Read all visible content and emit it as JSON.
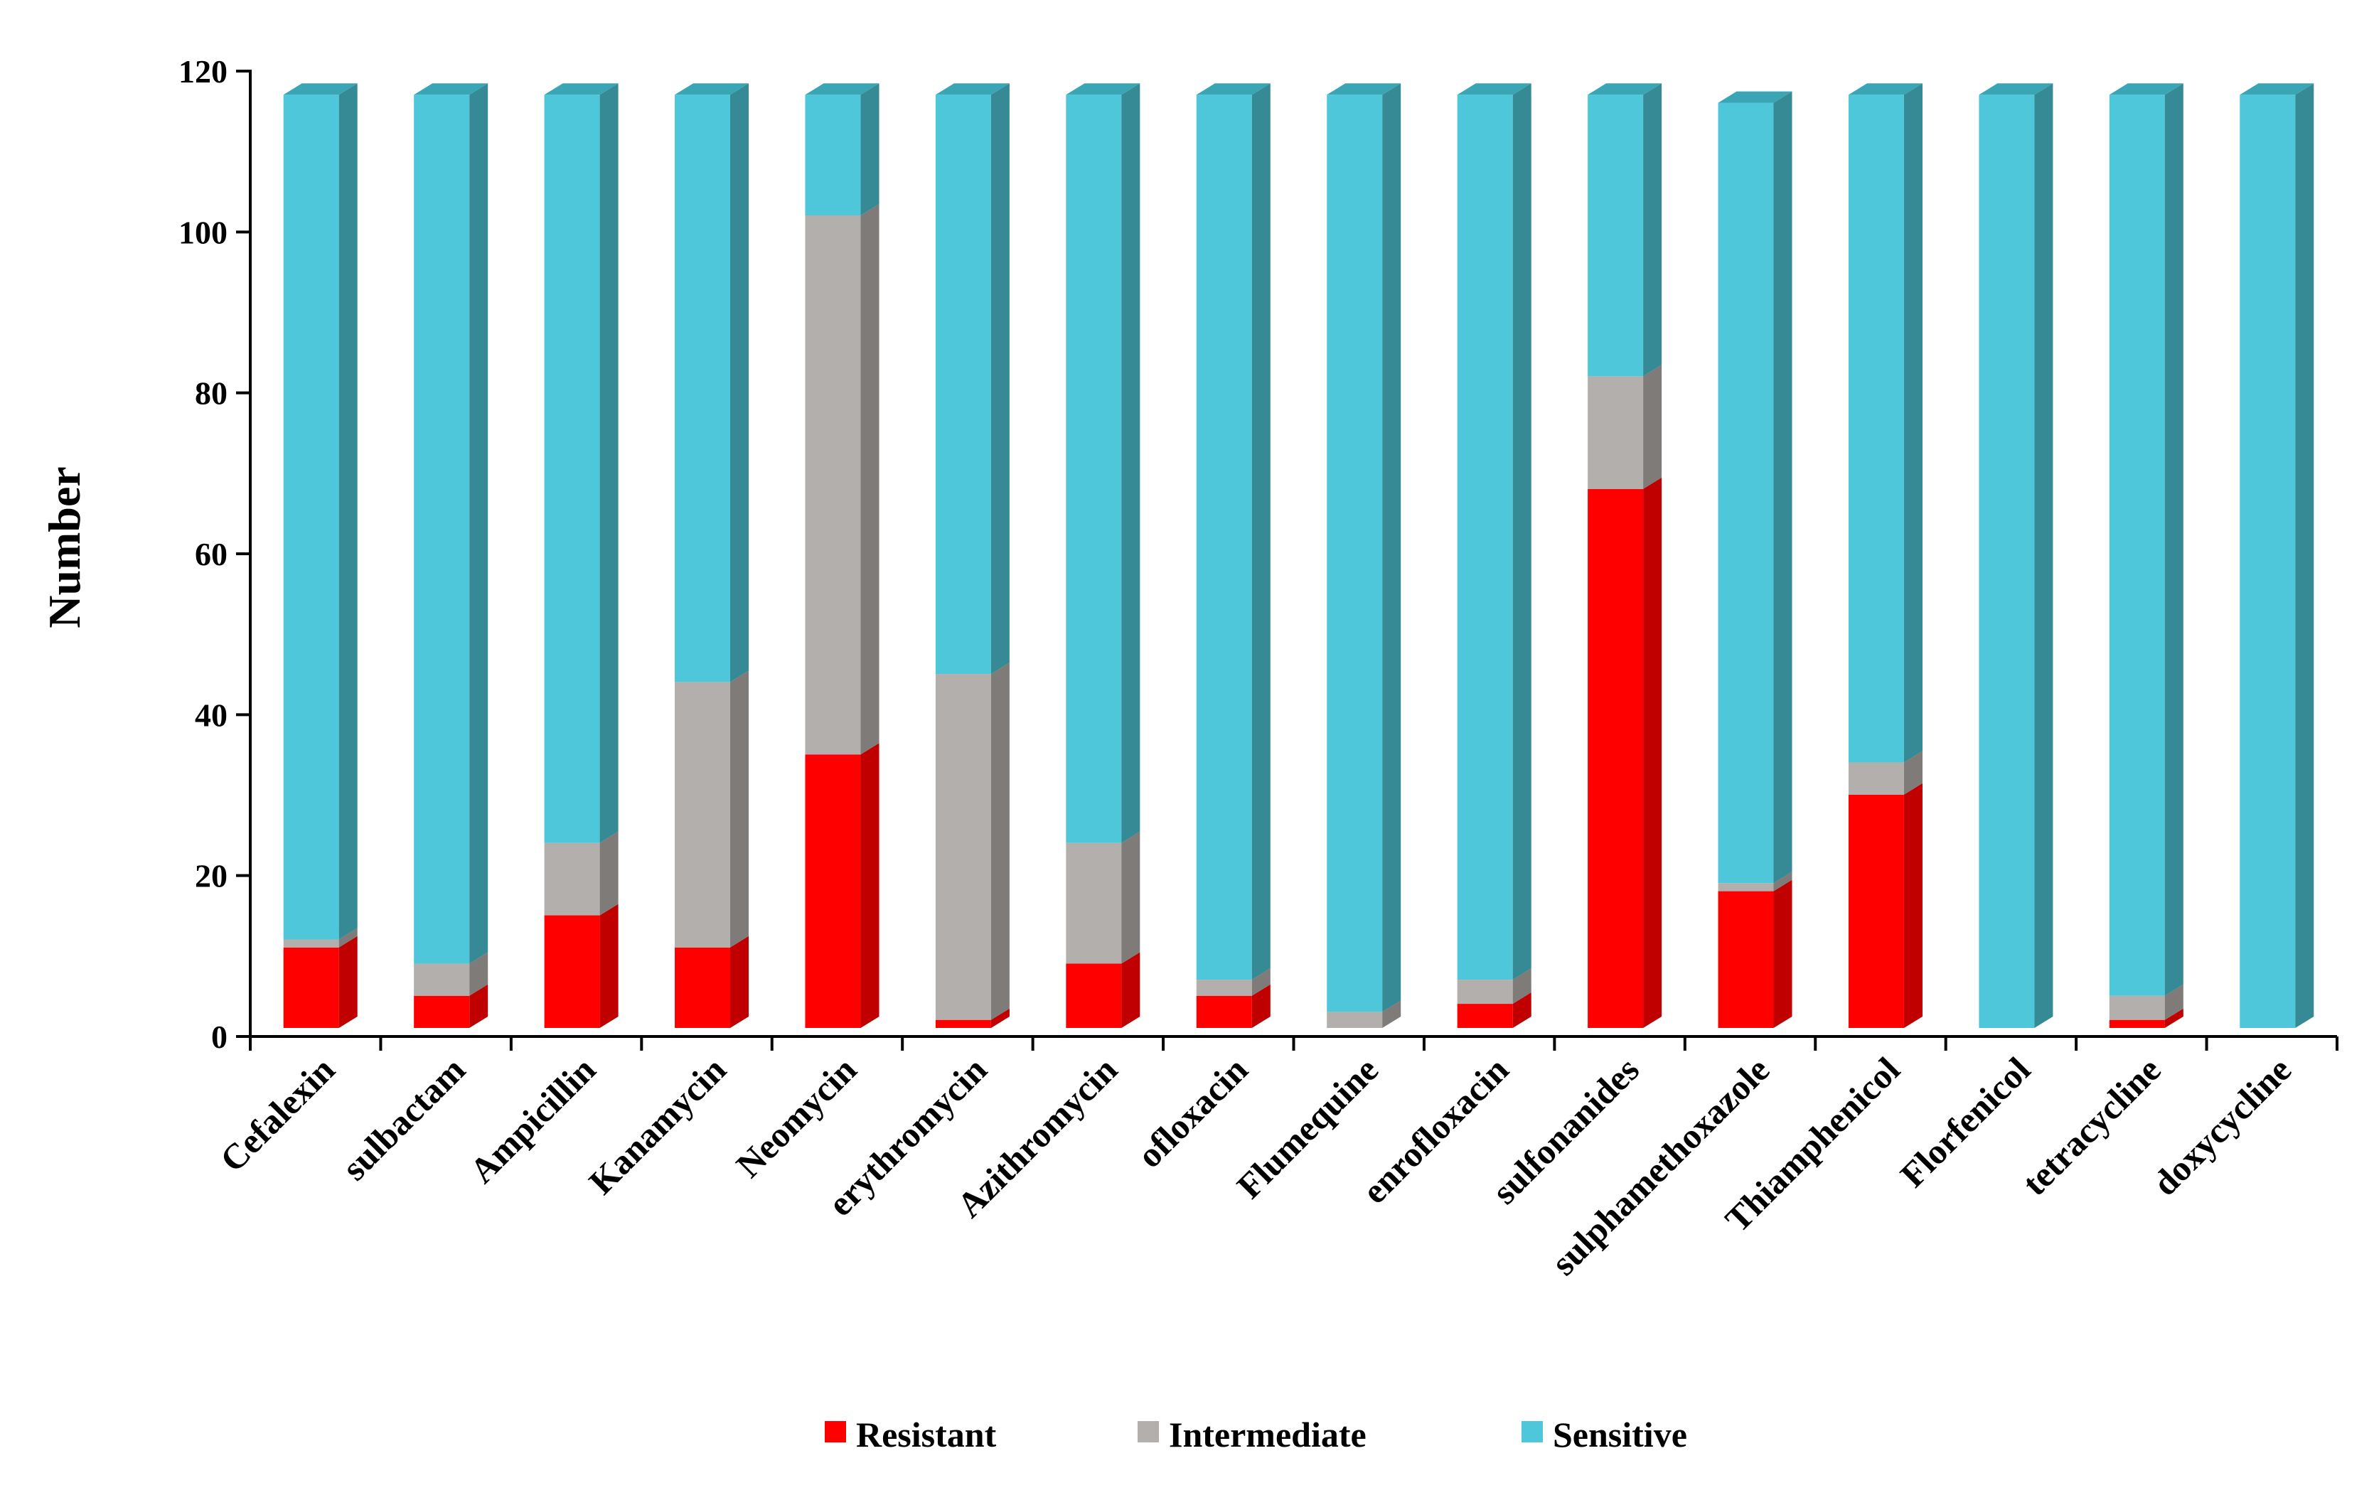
{
  "chart_data": {
    "type": "bar",
    "stacked": true,
    "three_d": true,
    "title": "",
    "xlabel": "",
    "ylabel": "Number",
    "ylim": [
      0,
      120
    ],
    "yticks": [
      0,
      20,
      40,
      60,
      80,
      100,
      120
    ],
    "legend_position": "bottom",
    "categories": [
      "Cefalexin",
      "sulbactam",
      "Ampicillin",
      "Kanamycin",
      "Neomycin",
      "erythromycin",
      "Azithromycin",
      "ofloxacin",
      "Flumequine",
      "enrofloxacin",
      "sulfonanides",
      "sulphamethoxazole",
      "Thiamphenicol",
      "Florfenicol",
      "tetracycline",
      "doxycycline"
    ],
    "series": [
      {
        "name": "Resistant",
        "color": "#FF0000",
        "side_color": "#C00000",
        "top_color": "#FF5A5A",
        "values": [
          10,
          4,
          14,
          10,
          34,
          1,
          8,
          4,
          0,
          3,
          67,
          17,
          29,
          0,
          1,
          0
        ]
      },
      {
        "name": "Intermediate",
        "color": "#B3AFAC",
        "side_color": "#7E7B78",
        "top_color": "#CDCAC8",
        "values": [
          1,
          4,
          9,
          33,
          67,
          43,
          15,
          2,
          2,
          3,
          14,
          1,
          4,
          0,
          3,
          0
        ]
      },
      {
        "name": "Sensitive",
        "color": "#4DC7D9",
        "side_color": "#358A96",
        "top_color": "#3AA5B5",
        "values": [
          105,
          108,
          93,
          73,
          15,
          72,
          93,
          110,
          114,
          110,
          35,
          97,
          83,
          116,
          112,
          116
        ]
      }
    ]
  }
}
